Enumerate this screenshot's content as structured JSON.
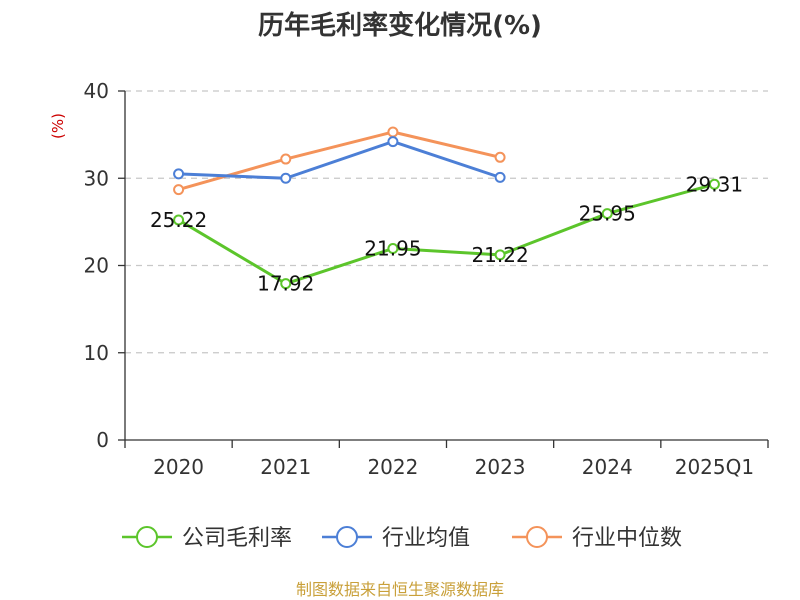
{
  "chart_data": {
    "type": "line",
    "title": "历年毛利率变化情况(%)",
    "ylabel": "(%)",
    "xlabel": "",
    "categories": [
      "2020",
      "2021",
      "2022",
      "2023",
      "2024",
      "2025Q1"
    ],
    "ylim": [
      0,
      40
    ],
    "yticks": [
      0,
      10,
      20,
      30,
      40
    ],
    "grid": true,
    "legend_position": "bottom",
    "series": [
      {
        "name": "公司毛利率",
        "color": "#5cc52b",
        "values": [
          25.22,
          17.92,
          21.95,
          21.22,
          25.95,
          29.31
        ],
        "show_labels": true
      },
      {
        "name": "行业均值",
        "color": "#4c7fd6",
        "values": [
          30.5,
          30.0,
          34.2,
          30.1,
          null,
          null
        ],
        "show_labels": false
      },
      {
        "name": "行业中位数",
        "color": "#f4935a",
        "values": [
          28.7,
          32.2,
          35.3,
          32.4,
          null,
          null
        ],
        "show_labels": false
      }
    ]
  },
  "source": "制图数据来自恒生聚源数据库"
}
